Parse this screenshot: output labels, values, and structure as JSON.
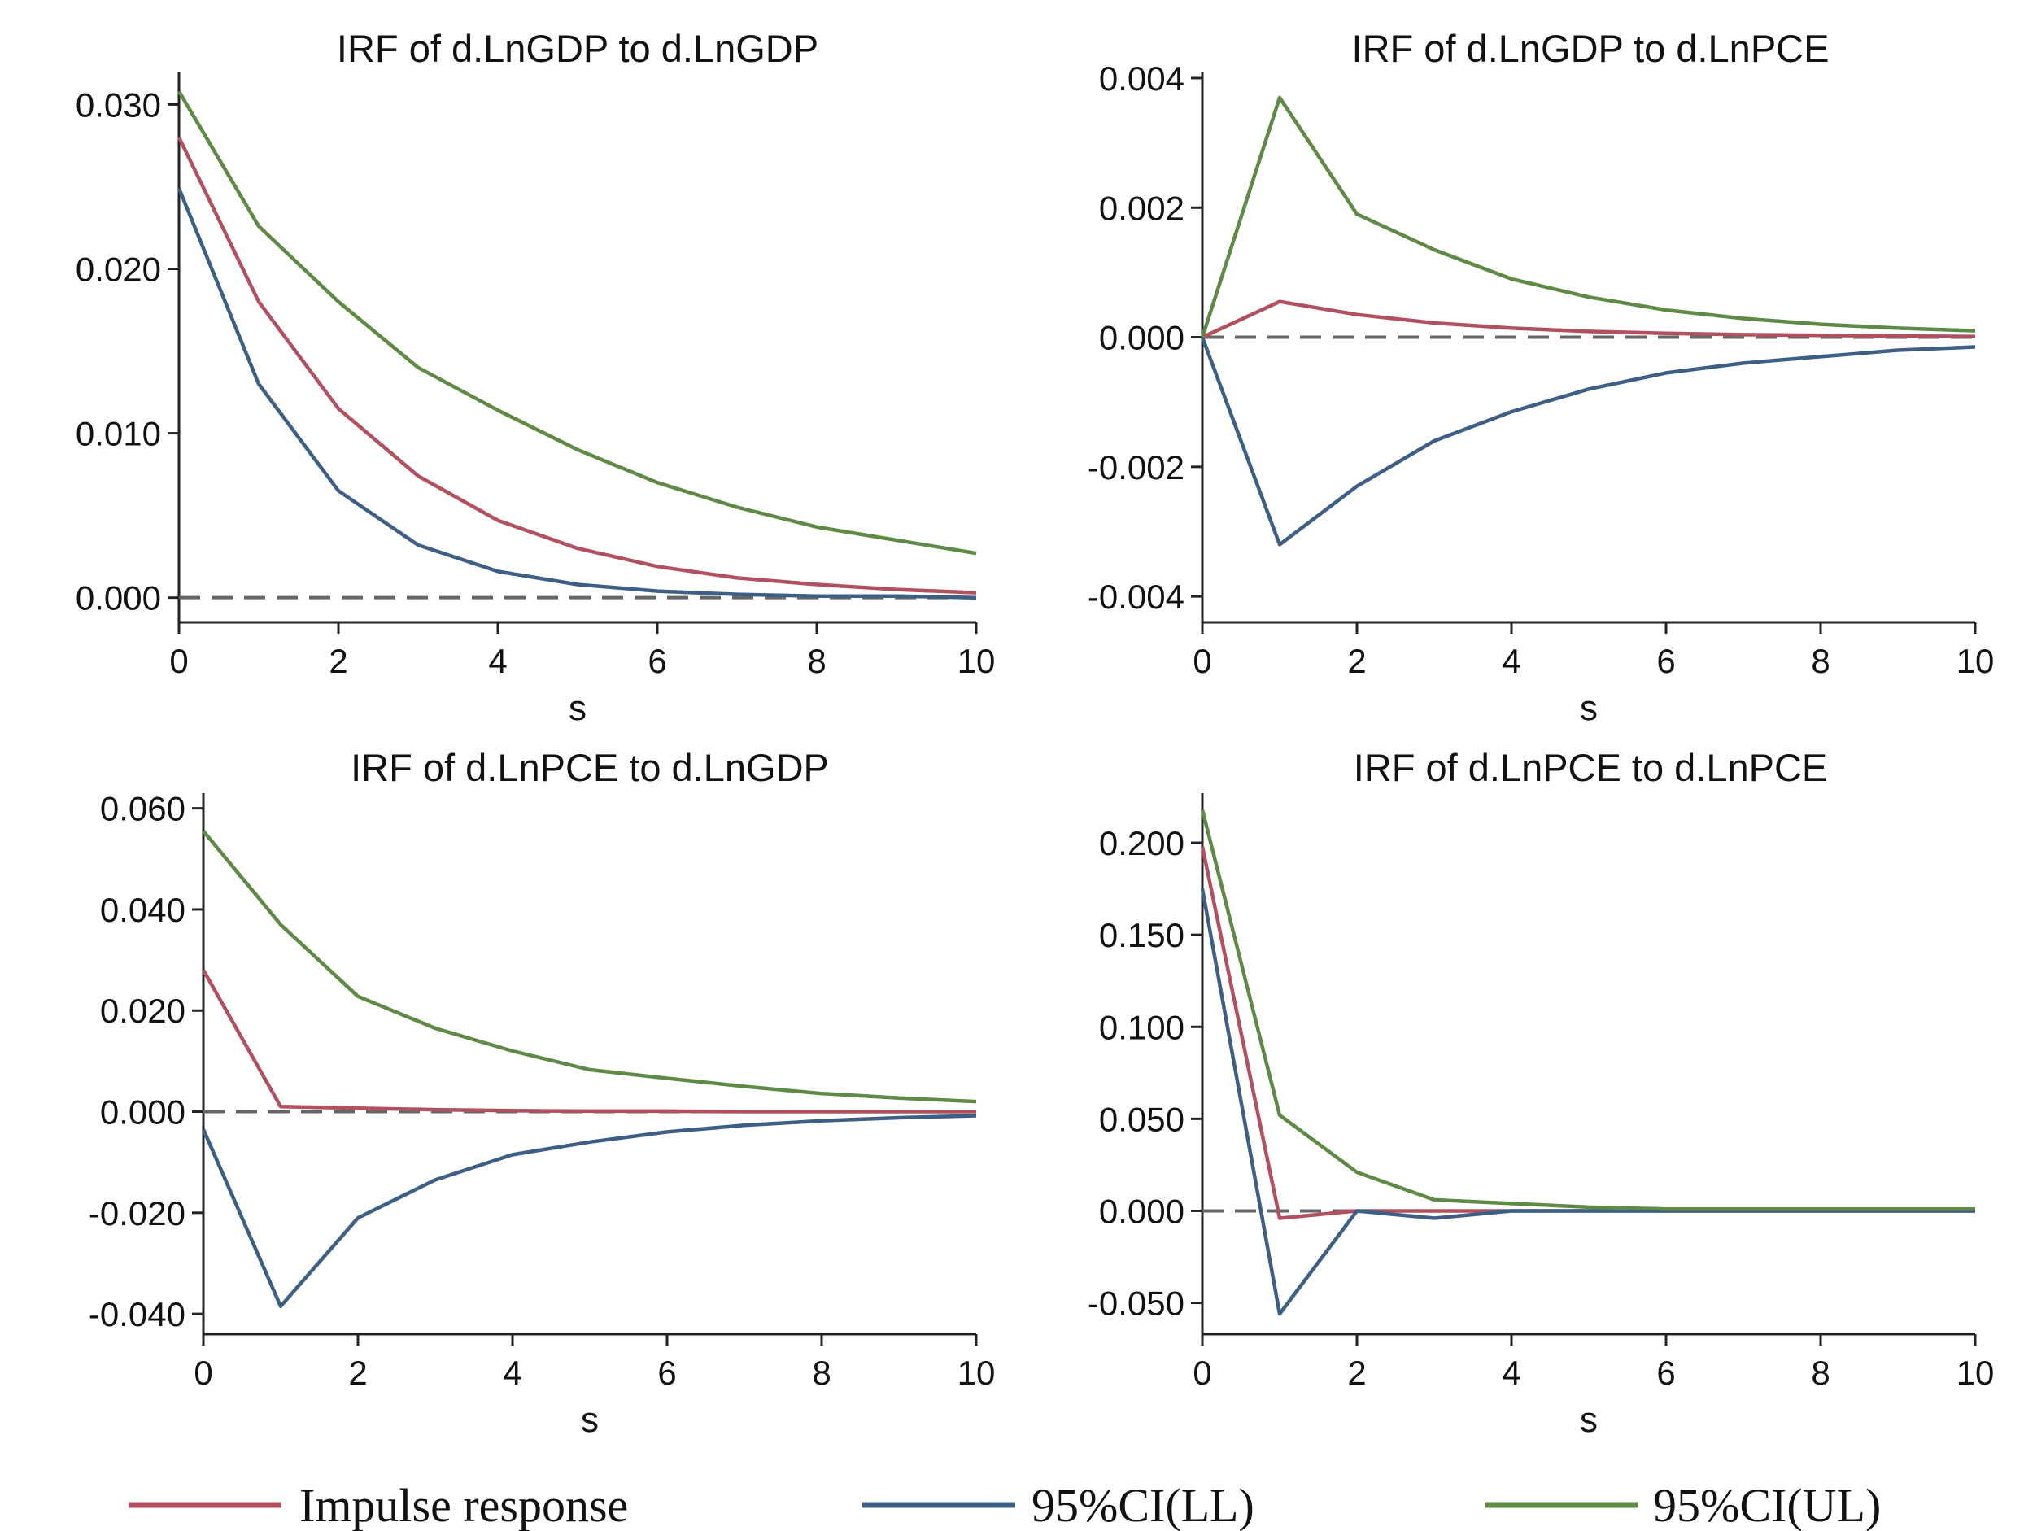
{
  "colors": {
    "impulse": "#b25060",
    "ll": "#3d5f86",
    "ul": "#5f8a45"
  },
  "legend": [
    {
      "key": "impulse",
      "label": "Impulse response"
    },
    {
      "key": "ll",
      "label": "95%CI(LL)"
    },
    {
      "key": "ul",
      "label": "95%CI(UL)"
    }
  ],
  "chart_data": [
    {
      "type": "line",
      "title": "IRF of d.LnGDP to d.LnGDP",
      "xlabel": "s",
      "ylabel": "",
      "xlim": [
        0,
        10
      ],
      "ylim": [
        -0.0015,
        0.032
      ],
      "xticks": [
        0,
        2,
        4,
        6,
        8,
        10
      ],
      "yticks": [
        0.0,
        0.01,
        0.02,
        0.03
      ],
      "ytick_labels": [
        "0.000",
        "0.010",
        "0.020",
        "0.030"
      ],
      "x": [
        0,
        1,
        2,
        3,
        4,
        5,
        6,
        7,
        8,
        9,
        10
      ],
      "series": [
        {
          "name": "Impulse response",
          "key": "impulse",
          "values": [
            0.028,
            0.018,
            0.0115,
            0.0074,
            0.0047,
            0.003,
            0.0019,
            0.0012,
            0.0008,
            0.0005,
            0.0003
          ]
        },
        {
          "name": "95%CI(LL)",
          "key": "ll",
          "values": [
            0.0249,
            0.013,
            0.0065,
            0.0032,
            0.0016,
            0.0008,
            0.0004,
            0.0002,
            0.0001,
            0.0001,
            0.0
          ]
        },
        {
          "name": "95%CI(UL)",
          "key": "ul",
          "values": [
            0.0308,
            0.0226,
            0.018,
            0.014,
            0.0114,
            0.009,
            0.007,
            0.0055,
            0.0043,
            0.0035,
            0.0027
          ]
        }
      ]
    },
    {
      "type": "line",
      "title": "IRF of d.LnGDP to d.LnPCE",
      "xlabel": "s",
      "ylabel": "",
      "xlim": [
        0,
        10
      ],
      "ylim": [
        -0.0044,
        0.0041
      ],
      "xticks": [
        0,
        2,
        4,
        6,
        8,
        10
      ],
      "yticks": [
        -0.004,
        -0.002,
        0.0,
        0.002,
        0.004
      ],
      "ytick_labels": [
        "-0.004",
        "-0.002",
        "0.000",
        "0.002",
        "0.004"
      ],
      "x": [
        0,
        1,
        2,
        3,
        4,
        5,
        6,
        7,
        8,
        9,
        10
      ],
      "series": [
        {
          "name": "Impulse response",
          "key": "impulse",
          "values": [
            0.0,
            0.00055,
            0.00035,
            0.00022,
            0.00014,
            9e-05,
            6e-05,
            4e-05,
            3e-05,
            2e-05,
            1e-05
          ]
        },
        {
          "name": "95%CI(LL)",
          "key": "ll",
          "values": [
            0.0,
            -0.0032,
            -0.0023,
            -0.0016,
            -0.00115,
            -0.0008,
            -0.00055,
            -0.0004,
            -0.0003,
            -0.0002,
            -0.00015
          ]
        },
        {
          "name": "95%CI(UL)",
          "key": "ul",
          "values": [
            0.0,
            0.0037,
            0.0019,
            0.00135,
            0.0009,
            0.00062,
            0.00042,
            0.00029,
            0.0002,
            0.00014,
            0.0001
          ]
        }
      ]
    },
    {
      "type": "line",
      "title": "IRF of d.LnPCE to d.LnGDP",
      "xlabel": "s",
      "ylabel": "",
      "xlim": [
        0,
        10
      ],
      "ylim": [
        -0.044,
        0.063
      ],
      "xticks": [
        0,
        2,
        4,
        6,
        8,
        10
      ],
      "yticks": [
        -0.04,
        -0.02,
        0.0,
        0.02,
        0.04,
        0.06
      ],
      "ytick_labels": [
        "-0.040",
        "-0.020",
        "0.000",
        "0.020",
        "0.040",
        "0.060"
      ],
      "x": [
        0,
        1,
        2,
        3,
        4,
        5,
        6,
        7,
        8,
        9,
        10
      ],
      "series": [
        {
          "name": "Impulse response",
          "key": "impulse",
          "values": [
            0.028,
            0.001,
            0.0007,
            0.0004,
            0.0002,
            0.0001,
            0.0001,
            0.0,
            0.0,
            0.0,
            0.0
          ]
        },
        {
          "name": "95%CI(LL)",
          "key": "ll",
          "values": [
            -0.0035,
            -0.0385,
            -0.021,
            -0.0135,
            -0.0085,
            -0.006,
            -0.004,
            -0.0027,
            -0.0018,
            -0.0012,
            -0.0008
          ]
        },
        {
          "name": "95%CI(UL)",
          "key": "ul",
          "values": [
            0.0555,
            0.037,
            0.0228,
            0.0165,
            0.012,
            0.0083,
            0.0066,
            0.005,
            0.0036,
            0.0027,
            0.002
          ]
        }
      ]
    },
    {
      "type": "line",
      "title": "IRF of d.LnPCE to d.LnPCE",
      "xlabel": "s",
      "ylabel": "",
      "xlim": [
        0,
        10
      ],
      "ylim": [
        -0.067,
        0.227
      ],
      "xticks": [
        0,
        2,
        4,
        6,
        8,
        10
      ],
      "yticks": [
        -0.05,
        0.0,
        0.05,
        0.1,
        0.15,
        0.2
      ],
      "ytick_labels": [
        "-0.050",
        "0.000",
        "0.050",
        "0.100",
        "0.150",
        "0.200"
      ],
      "x": [
        0,
        1,
        2,
        3,
        4,
        5,
        6,
        7,
        8,
        9,
        10
      ],
      "series": [
        {
          "name": "Impulse response",
          "key": "impulse",
          "values": [
            0.198,
            -0.004,
            0.0,
            0.0,
            0.0,
            0.0,
            0.0,
            0.0,
            0.0,
            0.0,
            0.0
          ]
        },
        {
          "name": "95%CI(LL)",
          "key": "ll",
          "values": [
            0.175,
            -0.056,
            0.0,
            -0.004,
            0.0,
            0.0,
            0.0,
            0.0,
            0.0,
            0.0,
            0.0
          ]
        },
        {
          "name": "95%CI(UL)",
          "key": "ul",
          "values": [
            0.218,
            0.052,
            0.021,
            0.006,
            0.004,
            0.002,
            0.001,
            0.001,
            0.001,
            0.001,
            0.001
          ]
        }
      ]
    }
  ]
}
